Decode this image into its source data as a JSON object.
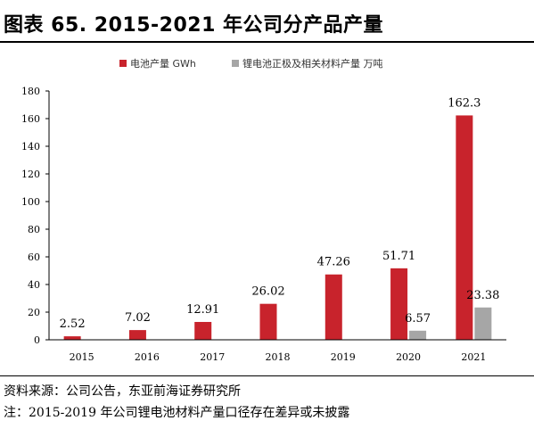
{
  "title": "图表 65. 2015-2021 年公司分产品产量",
  "footer": {
    "source": "资料来源：公司公告，东亚前海证券研究所",
    "note": "注：2015-2019 年公司锂电池材料产量口径存在差异或未披露"
  },
  "chart_data": {
    "type": "bar",
    "categories": [
      "2015",
      "2016",
      "2017",
      "2018",
      "2019",
      "2020",
      "2021"
    ],
    "series": [
      {
        "name": "电池产量 GWh",
        "color": "#c8232c",
        "values": [
          2.52,
          7.02,
          12.91,
          26.02,
          47.26,
          51.71,
          162.3
        ],
        "labels": [
          "2.52",
          "7.02",
          "12.91",
          "26.02",
          "47.26",
          "51.71",
          "162.3"
        ]
      },
      {
        "name": "锂电池正极及相关材料产量 万吨",
        "color": "#a6a6a6",
        "values": [
          null,
          null,
          null,
          null,
          null,
          6.57,
          23.38
        ],
        "labels": [
          "",
          "",
          "",
          "",
          "",
          "6.57",
          "23.38"
        ]
      }
    ],
    "ylim": [
      0,
      180
    ],
    "yticks": [
      "0",
      "20",
      "40",
      "60",
      "80",
      "100",
      "120",
      "140",
      "160",
      "180"
    ],
    "legend_position": "top-left"
  }
}
